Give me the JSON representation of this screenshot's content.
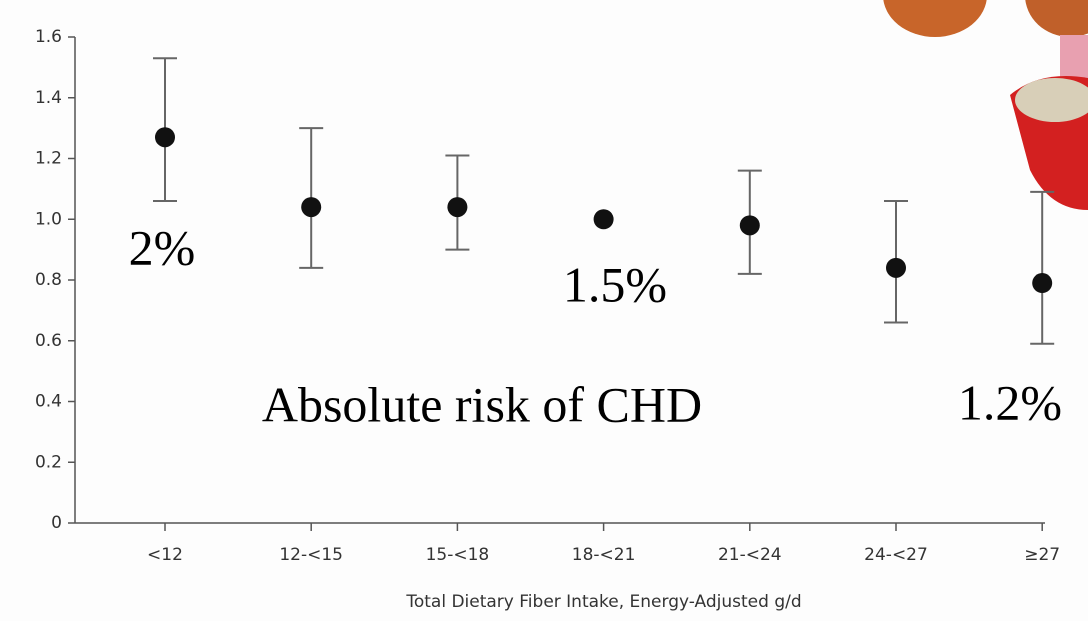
{
  "chart_data": {
    "type": "errorbar",
    "x_label": "Total Dietary Fiber Intake, Energy-Adjusted g/d",
    "categories": [
      "<12",
      "12-<15",
      "15-<18",
      "18-<21",
      "21-<24",
      "24-<27",
      "≥27"
    ],
    "values": [
      1.27,
      1.04,
      1.04,
      1.0,
      0.98,
      0.84,
      0.79
    ],
    "lower": [
      1.06,
      0.84,
      0.9,
      null,
      0.82,
      0.66,
      0.59
    ],
    "upper": [
      1.53,
      1.3,
      1.21,
      null,
      1.16,
      1.06,
      1.09
    ],
    "color": "#111111",
    "ylim": [
      0,
      1.6
    ],
    "yticks": [
      0,
      0.2,
      0.4,
      0.6,
      0.8,
      {
        "value": 1,
        "label": "1.0"
      },
      1.2,
      1.4,
      1.6
    ],
    "grid": false,
    "annotations": [
      "2%",
      "1.5%",
      "1.2%",
      "Absolute risk of CHD"
    ]
  }
}
